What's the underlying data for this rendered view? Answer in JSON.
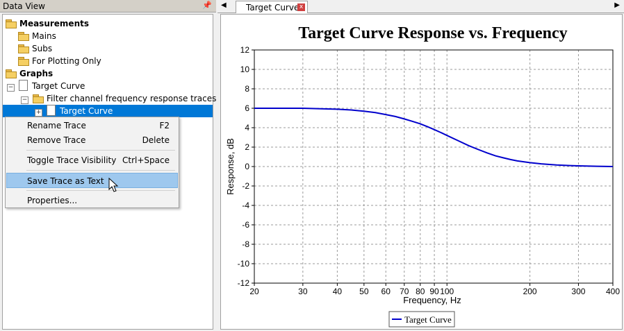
{
  "left_panel": {
    "title": "Data View",
    "pin_icon": "pin-icon",
    "tree": {
      "measurements": "Measurements",
      "mains": "Mains",
      "subs": "Subs",
      "plotting_only": "For Plotting Only",
      "graphs": "Graphs",
      "target_curve_graph": "Target Curve",
      "filter_traces": "Filter channel frequency response traces",
      "selected_trace": "Target Curve"
    }
  },
  "context_menu": {
    "items": [
      {
        "label": "Rename Trace",
        "shortcut": "F2"
      },
      {
        "label": "Remove Trace",
        "shortcut": "Delete"
      },
      {
        "label": "Toggle Trace Visibility",
        "shortcut": "Ctrl+Space"
      },
      {
        "label": "Save Trace as Text",
        "shortcut": ""
      },
      {
        "label": "Properties...",
        "shortcut": ""
      }
    ]
  },
  "tabs": {
    "active_label": "Target Curve",
    "close_glyph": "x"
  },
  "chart_data": {
    "type": "line",
    "title": "Target Curve Response vs. Frequency",
    "xlabel": "Frequency, Hz",
    "ylabel": "Response, dB",
    "xscale": "log",
    "xlim": [
      20,
      400
    ],
    "ylim": [
      -12,
      12
    ],
    "x_ticks": [
      20,
      30,
      40,
      50,
      60,
      70,
      80,
      90,
      100,
      200,
      300,
      400
    ],
    "y_ticks": [
      12,
      10,
      8,
      6,
      4,
      2,
      0,
      -2,
      -4,
      -6,
      -8,
      -10,
      -12
    ],
    "grid": true,
    "legend_position": "bottom-center",
    "series": [
      {
        "name": "Target Curve",
        "color": "#0000cc",
        "x": [
          20,
          25,
          30,
          35,
          40,
          45,
          50,
          55,
          60,
          65,
          70,
          75,
          80,
          85,
          90,
          95,
          100,
          110,
          120,
          130,
          140,
          150,
          160,
          170,
          180,
          200,
          220,
          250,
          280,
          300,
          350,
          400
        ],
        "y": [
          6.0,
          6.0,
          6.0,
          5.95,
          5.9,
          5.82,
          5.7,
          5.55,
          5.35,
          5.15,
          4.9,
          4.65,
          4.4,
          4.1,
          3.8,
          3.5,
          3.2,
          2.65,
          2.15,
          1.75,
          1.4,
          1.1,
          0.9,
          0.72,
          0.58,
          0.4,
          0.28,
          0.16,
          0.1,
          0.07,
          0.03,
          0.0
        ]
      }
    ]
  }
}
